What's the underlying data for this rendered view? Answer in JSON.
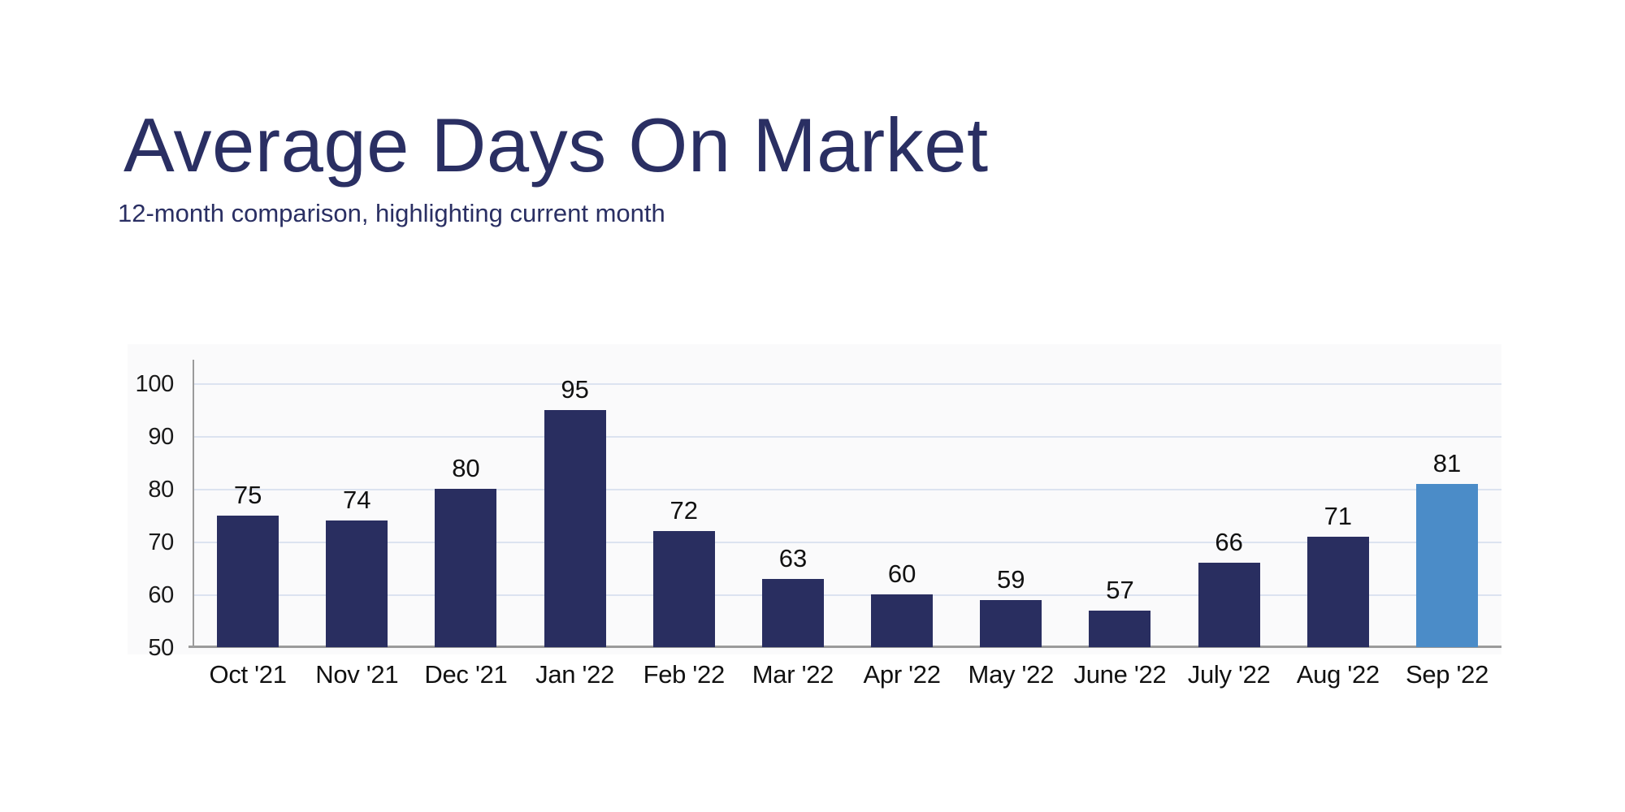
{
  "header": {
    "title": "Average Days On Market",
    "subtitle": "12-month comparison, highlighting current month",
    "title_color": "#2a2f63",
    "subtitle_color": "#2a2f63"
  },
  "chart_data": {
    "type": "bar",
    "title": "Average Days On Market",
    "subtitle": "12-month comparison, highlighting current month",
    "categories": [
      "Oct '21",
      "Nov '21",
      "Dec '21",
      "Jan '22",
      "Feb '22",
      "Mar '22",
      "Apr '22",
      "May '22",
      "June '22",
      "July '22",
      "Aug '22",
      "Sep '22"
    ],
    "values": [
      75,
      74,
      80,
      95,
      72,
      63,
      60,
      59,
      57,
      66,
      71,
      81
    ],
    "value_labels_shown": true,
    "highlighted_category": "Sep '22",
    "highlight_index": 11,
    "bar_color": "#292e60",
    "highlight_color": "#4b8cc8",
    "xlabel": "",
    "ylabel": "",
    "ylim": [
      50,
      104
    ],
    "yticks": [
      50,
      60,
      70,
      80,
      90,
      100
    ],
    "grid": "horizontal",
    "gridline_color": "#dce3f0",
    "axis_line_color": "#9b9b9b",
    "tick_label_color": "#111111",
    "legend": "none"
  }
}
